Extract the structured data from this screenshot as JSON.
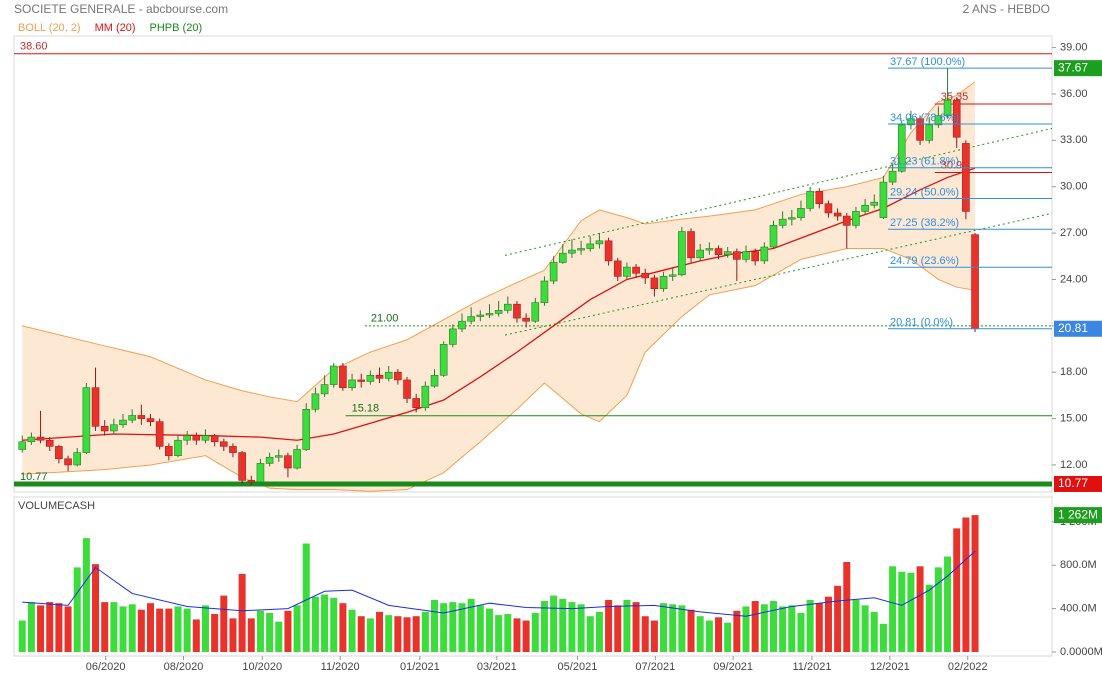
{
  "header": {
    "title": "SOCIETE GENERALE - abcbourse.com",
    "period": "2 ANS - HEBDO"
  },
  "chart_data": [
    {
      "type": "candlestick",
      "legend": [
        {
          "name": "BOLL (20, 2)",
          "color": "#f0a050"
        },
        {
          "name": "MM (20)",
          "color": "#e01010"
        },
        {
          "name": "PHPB (20)",
          "color": "#1a8a1a"
        }
      ],
      "up_color": "#3ddc3d",
      "down_color": "#e8322c",
      "xlim": [
        -0.9,
        112.4
      ],
      "ylim": [
        10.25,
        39.75
      ],
      "yticks": [
        {
          "value": 12,
          "label": "12.00"
        },
        {
          "value": 15,
          "label": "15.00"
        },
        {
          "value": 18,
          "label": "18.00"
        },
        {
          "value": 21,
          "label": "21.00"
        },
        {
          "value": 24,
          "label": "24.00"
        },
        {
          "value": 27,
          "label": "27.00"
        },
        {
          "value": 30,
          "label": "30.00"
        },
        {
          "value": 33,
          "label": "33.00"
        },
        {
          "value": 36,
          "label": "36.00"
        },
        {
          "value": 39,
          "label": "39.00"
        }
      ],
      "open": [
        13.0,
        13.5,
        13.8,
        13.6,
        13.2,
        12.4,
        12.0,
        12.8,
        17.0,
        14.5,
        14.2,
        14.6,
        14.9,
        15.2,
        15.0,
        14.8,
        13.2,
        12.6,
        13.6,
        13.9,
        13.6,
        13.9,
        13.5,
        13.2,
        12.8,
        11.0,
        10.9,
        12.1,
        12.5,
        12.6,
        11.8,
        13.0,
        15.6,
        16.6,
        17.2,
        18.4,
        17.0,
        17.5,
        17.4,
        17.8,
        17.6,
        18.0,
        17.5,
        16.3,
        15.7,
        17.1,
        17.8,
        19.8,
        20.8,
        21.3,
        21.6,
        21.7,
        21.8,
        22.0,
        22.4,
        21.5,
        21.3,
        22.5,
        23.9,
        25.1,
        25.7,
        25.9,
        26.0,
        26.3,
        26.5,
        25.2,
        24.2,
        24.8,
        24.4,
        24.1,
        23.4,
        24.2,
        24.3,
        27.1,
        25.4,
        25.9,
        26.0,
        25.6,
        25.8,
        25.3,
        25.8,
        25.2,
        26.1,
        27.5,
        27.9,
        28.0,
        28.6,
        29.7,
        28.9,
        28.3,
        28.1,
        27.5,
        28.4,
        28.8,
        28.0,
        30.3,
        31.0,
        34.0,
        34.4,
        33.0,
        34.0,
        34.6,
        35.6,
        32.8,
        26.9
      ],
      "high": [
        13.9,
        14.1,
        15.5,
        13.8,
        13.3,
        12.6,
        13.1,
        17.3,
        18.3,
        14.9,
        15.0,
        15.3,
        15.6,
        15.9,
        15.3,
        15.0,
        13.4,
        13.9,
        14.2,
        14.1,
        14.3,
        14.0,
        13.7,
        13.4,
        12.9,
        11.3,
        12.4,
        12.8,
        13.0,
        12.8,
        13.3,
        16.0,
        17.0,
        17.8,
        18.6,
        18.6,
        17.9,
        17.9,
        18.1,
        18.3,
        18.4,
        18.2,
        17.7,
        16.6,
        17.4,
        18.2,
        20.0,
        21.1,
        21.8,
        22.2,
        22.0,
        22.4,
        22.6,
        22.9,
        22.6,
        21.8,
        22.8,
        24.2,
        25.5,
        26.3,
        26.6,
        26.5,
        26.8,
        27.0,
        26.7,
        25.4,
        25.1,
        25.0,
        24.7,
        24.3,
        24.5,
        24.8,
        27.4,
        27.3,
        26.3,
        26.4,
        26.2,
        26.1,
        26.0,
        26.2,
        26.0,
        26.4,
        27.8,
        28.4,
        28.5,
        29.1,
        30.0,
        29.9,
        29.1,
        28.6,
        28.3,
        28.7,
        29.2,
        29.5,
        30.7,
        31.5,
        34.3,
        34.9,
        34.6,
        34.5,
        35.2,
        37.67,
        35.8,
        33.0,
        27.0
      ],
      "low": [
        12.8,
        13.3,
        13.4,
        12.9,
        12.1,
        11.6,
        11.9,
        12.7,
        14.2,
        13.9,
        14.0,
        14.4,
        14.7,
        14.6,
        14.5,
        13.0,
        12.3,
        12.5,
        13.3,
        13.3,
        13.4,
        13.2,
        12.9,
        12.5,
        10.8,
        10.7,
        10.8,
        11.9,
        12.2,
        11.2,
        11.7,
        12.9,
        15.4,
        16.4,
        17.0,
        16.8,
        16.8,
        17.0,
        17.2,
        17.3,
        17.4,
        17.2,
        16.0,
        15.4,
        15.5,
        17.0,
        17.7,
        19.6,
        20.6,
        21.1,
        21.3,
        21.5,
        21.6,
        21.8,
        21.2,
        20.9,
        21.2,
        22.3,
        23.7,
        25.0,
        25.4,
        25.6,
        25.8,
        26.0,
        24.9,
        23.9,
        24.0,
        24.1,
        23.7,
        22.9,
        23.2,
        23.9,
        24.2,
        25.1,
        25.2,
        25.6,
        25.3,
        25.4,
        23.9,
        25.1,
        24.9,
        25.0,
        26.0,
        27.3,
        27.5,
        27.8,
        28.4,
        28.6,
        28.0,
        27.8,
        26.0,
        27.3,
        28.2,
        28.6,
        27.9,
        30.1,
        30.9,
        33.7,
        32.7,
        32.8,
        33.8,
        34.4,
        32.5,
        27.9,
        20.6
      ],
      "close": [
        13.5,
        13.8,
        13.6,
        13.2,
        12.4,
        12.0,
        12.8,
        17.0,
        14.5,
        14.2,
        14.6,
        14.9,
        15.2,
        15.0,
        14.8,
        13.2,
        12.6,
        13.6,
        13.9,
        13.6,
        13.9,
        13.5,
        13.2,
        12.8,
        11.0,
        10.9,
        12.1,
        12.5,
        12.6,
        11.8,
        13.0,
        15.6,
        16.6,
        17.2,
        18.4,
        17.0,
        17.5,
        17.4,
        17.8,
        17.6,
        18.0,
        17.5,
        16.3,
        15.7,
        17.1,
        17.8,
        19.8,
        20.8,
        21.3,
        21.6,
        21.7,
        21.8,
        22.0,
        22.4,
        21.5,
        21.3,
        22.5,
        23.9,
        25.1,
        25.7,
        25.9,
        26.0,
        26.3,
        26.5,
        25.2,
        24.2,
        24.8,
        24.4,
        24.1,
        23.4,
        24.2,
        24.3,
        27.1,
        25.4,
        25.9,
        26.0,
        25.6,
        25.8,
        25.3,
        25.8,
        25.2,
        26.1,
        27.5,
        27.9,
        28.0,
        28.6,
        29.7,
        28.9,
        28.3,
        28.1,
        27.5,
        28.4,
        28.8,
        29.0,
        30.3,
        31.0,
        34.0,
        34.4,
        33.0,
        34.0,
        34.6,
        35.6,
        33.2,
        28.4,
        20.81
      ],
      "bollinger": {
        "x": [
          0,
          9,
          14,
          20,
          24,
          27,
          30,
          34,
          38,
          42,
          46,
          50,
          54,
          57,
          61,
          63,
          66,
          68,
          72,
          75,
          80,
          85,
          90,
          94,
          97,
          100,
          102,
          104
        ],
        "upper": [
          21.0,
          19.7,
          19.0,
          17.5,
          16.8,
          16.4,
          16.1,
          18.2,
          19.3,
          20.1,
          21.4,
          22.7,
          23.8,
          24.6,
          27.8,
          28.5,
          28.0,
          27.6,
          27.9,
          28.1,
          28.5,
          29.5,
          30.0,
          30.6,
          33.5,
          35.5,
          35.9,
          36.8
        ],
        "lower": [
          11.4,
          11.7,
          12.0,
          12.6,
          11.2,
          10.5,
          10.4,
          10.4,
          10.3,
          10.4,
          11.5,
          13.5,
          15.6,
          17.3,
          15.3,
          14.8,
          16.5,
          19.3,
          21.6,
          23.0,
          23.6,
          25.3,
          26.0,
          26.0,
          25.3,
          24.0,
          23.5,
          23.3
        ],
        "color": "#f0a050",
        "fill": "#fde4c8"
      },
      "ma": {
        "x": [
          0,
          10,
          20,
          26,
          30,
          34,
          38,
          42,
          46,
          50,
          54,
          58,
          62,
          66,
          70,
          74,
          78,
          82,
          86,
          90,
          94,
          98,
          101,
          104
        ],
        "values": [
          13.6,
          14.0,
          13.9,
          13.8,
          13.6,
          14.0,
          14.7,
          15.4,
          16.2,
          17.7,
          19.3,
          21.0,
          22.7,
          24.0,
          24.6,
          25.2,
          25.7,
          26.0,
          26.9,
          27.8,
          28.6,
          29.8,
          30.6,
          31.2
        ],
        "color": "#e01010"
      },
      "levels": [
        {
          "value": 38.6,
          "label": "38.60",
          "color": "#e01010",
          "start": -0.9,
          "width": 1
        },
        {
          "value": 21,
          "label": "21.00",
          "color": "#1a8a1a",
          "start": 37.4,
          "width": 1,
          "dashed": true
        },
        {
          "value": 15.18,
          "color": "#1a8a1a",
          "start": 35.3,
          "width": 1
        },
        {
          "value": 10.77,
          "color": "#1a8a1a",
          "start": -0.9,
          "width": 5
        },
        {
          "value": 35.35,
          "color": "#e01010",
          "start": 99.6,
          "width": 1
        },
        {
          "value": 30.92,
          "color": "#e01010",
          "start": 99.6,
          "width": 1
        }
      ],
      "trendlines": [
        {
          "x": [
            52.7,
            112.4
          ],
          "y": [
            25.56,
            33.77
          ]
        },
        {
          "x": [
            52.7,
            112.4
          ],
          "y": [
            20.4,
            28.28
          ]
        }
      ],
      "trend_color": "#1a9a1a",
      "fibonacci": {
        "color": "#2f8fe0",
        "start": 94.5,
        "levels": [
          {
            "value": 37.67,
            "label": "37.67  (100.0%)"
          },
          {
            "value": 34.06,
            "label": "34.06  (78.6%)"
          },
          {
            "value": 31.23,
            "label": "31.23  (61.8%)"
          },
          {
            "value": 29.24,
            "label": "29.24  (50.0%)"
          },
          {
            "value": 27.25,
            "label": "27.25  (38.2%)"
          },
          {
            "value": 24.79,
            "label": "24.79  (23.6%)"
          },
          {
            "value": 20.81,
            "label": "20.81  (0.0%)"
          }
        ]
      },
      "badges": [
        {
          "value": 37.67,
          "color": "#1e9e1e"
        },
        {
          "value": 20.81,
          "color": "#3a86e0"
        },
        {
          "value": 10.77,
          "color": "#e01010"
        }
      ]
    },
    {
      "type": "bar",
      "title": "VOLUMECASH",
      "xlim": [
        -0.9,
        112.4
      ],
      "ylim": [
        0,
        1300
      ],
      "yticks": [
        {
          "value": 0,
          "label": "0.0000M"
        },
        {
          "value": 400,
          "label": "400.0M"
        },
        {
          "value": 800,
          "label": "800.0M"
        },
        {
          "value": 1200,
          "label": "1 200M"
        }
      ],
      "xticks": [
        {
          "value": 9.1,
          "label": "06/2020"
        },
        {
          "value": 17.6,
          "label": "08/2020"
        },
        {
          "value": 26.2,
          "label": "10/2020"
        },
        {
          "value": 34.7,
          "label": "11/2020"
        },
        {
          "value": 43.4,
          "label": "01/2021"
        },
        {
          "value": 51.8,
          "label": "03/2021"
        },
        {
          "value": 60.6,
          "label": "05/2021"
        },
        {
          "value": 69.1,
          "label": "07/2021"
        },
        {
          "value": 77.6,
          "label": "09/2021"
        },
        {
          "value": 86.2,
          "label": "11/2021"
        },
        {
          "value": 94.7,
          "label": "12/2021"
        },
        {
          "value": 103.2,
          "label": "02/2022"
        }
      ],
      "values": [
        290,
        460,
        430,
        460,
        450,
        420,
        780,
        1050,
        810,
        460,
        460,
        420,
        440,
        390,
        450,
        400,
        400,
        420,
        400,
        300,
        430,
        350,
        520,
        310,
        720,
        310,
        380,
        360,
        280,
        380,
        430,
        1000,
        510,
        530,
        500,
        450,
        390,
        330,
        310,
        370,
        340,
        330,
        320,
        330,
        370,
        480,
        450,
        460,
        450,
        490,
        430,
        400,
        340,
        350,
        310,
        290,
        360,
        470,
        520,
        490,
        460,
        440,
        330,
        370,
        480,
        430,
        480,
        460,
        330,
        290,
        450,
        440,
        430,
        390,
        330,
        290,
        320,
        270,
        380,
        420,
        470,
        440,
        470,
        420,
        430,
        360,
        480,
        450,
        510,
        610,
        830,
        480,
        430,
        370,
        260,
        790,
        740,
        730,
        790,
        620,
        780,
        880,
        1140,
        1240,
        1262
      ],
      "ma": {
        "x": [
          0,
          5,
          8,
          12,
          18,
          24,
          29,
          33,
          36,
          40,
          46,
          51,
          55,
          60,
          64,
          69,
          74,
          79,
          84,
          89,
          93,
          96,
          99,
          101,
          104
        ],
        "values": [
          460,
          430,
          780,
          540,
          420,
          380,
          400,
          560,
          570,
          430,
          360,
          450,
          410,
          400,
          420,
          430,
          370,
          330,
          420,
          470,
          500,
          430,
          570,
          700,
          930
        ],
        "color": "#1a2ee0"
      },
      "badge": {
        "value": 1262,
        "label": "1 262M",
        "color": "#1e9e1e"
      }
    }
  ]
}
